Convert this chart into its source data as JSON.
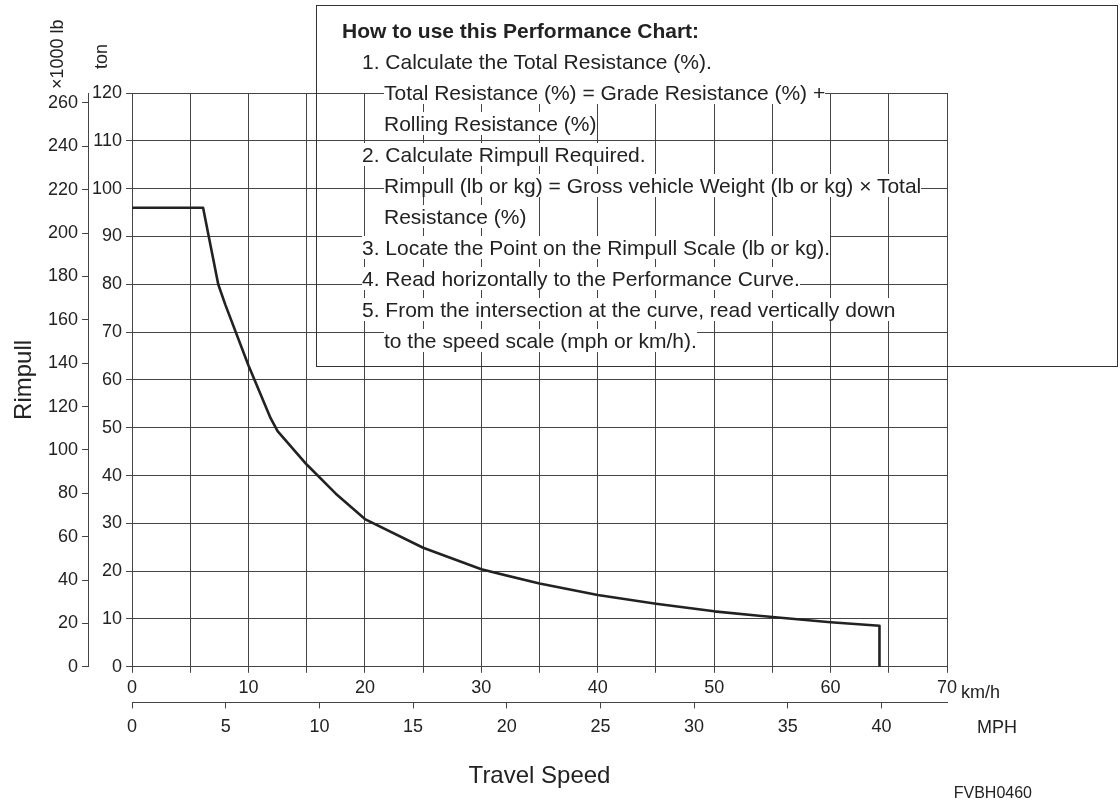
{
  "chart_data": {
    "type": "line",
    "ylabel": "Rimpull",
    "xlabel": "Travel Speed",
    "x2label": "MPH",
    "annotations": [
      "ton",
      "×1000 lb",
      "km/h",
      "How to use this Performance Chart:",
      "1. Calculate the Total Resistance (%).\nTotal Resistance (%) = Grade Resistance (%) +\nRolling Resistance (%)",
      "2. Calculate Rimpull Required.\nRimpull (lb or kg) = Gross vehicle Weight (lb or kg) × Total\nResistance (%)",
      "3. Locate the Point on the Rimpull Scale (lb or kg).",
      "4. Read horizontally to the Performance Curve.",
      "5. From the intersection at the curve, read vertically down\nto the speed scale (mph or km/h).",
      "FVBH0460"
    ],
    "x": [
      0,
      6.1,
      7.4,
      8,
      10,
      11.9,
      12.5,
      15,
      17.5,
      20,
      25,
      30,
      35,
      40,
      45,
      50,
      55,
      60,
      64.2,
      64.2
    ],
    "series": [
      {
        "color": "#222222",
        "axis": "y2",
        "values": [
          96,
          96,
          80,
          75.8,
          63,
          52,
          49.3,
          42.3,
          36.2,
          30.9,
          24.9,
          20.4,
          17.4,
          15,
          13.2,
          11.6,
          10.4,
          9.3,
          8.6,
          0
        ]
      }
    ],
    "xlim": [
      0,
      70
    ],
    "xticks": [
      0,
      {
        "value": 5,
        "label": null
      },
      10,
      {
        "value": 15,
        "label": null
      },
      20,
      {
        "value": 25,
        "label": null
      },
      30,
      {
        "value": 35,
        "label": null
      },
      40,
      {
        "value": 45,
        "label": null
      },
      50,
      {
        "value": 55,
        "label": null
      },
      60,
      {
        "value": 65,
        "label": null
      },
      70
    ],
    "x2lim": [
      0,
      43.5
    ],
    "x2ticks": [
      0,
      5,
      10,
      15,
      20,
      25,
      30,
      35,
      40
    ],
    "y2lim": [
      0,
      120
    ],
    "y2ticks": [
      0,
      10,
      20,
      30,
      40,
      50,
      60,
      70,
      80,
      90,
      100,
      110,
      120
    ],
    "ylim": [
      0,
      264.6
    ],
    "yticks": [
      0,
      20,
      40,
      60,
      80,
      100,
      120,
      140,
      160,
      180,
      200,
      220,
      240,
      260
    ],
    "grid": true,
    "legend": false,
    "marker": "none",
    "line_style": "solid"
  }
}
